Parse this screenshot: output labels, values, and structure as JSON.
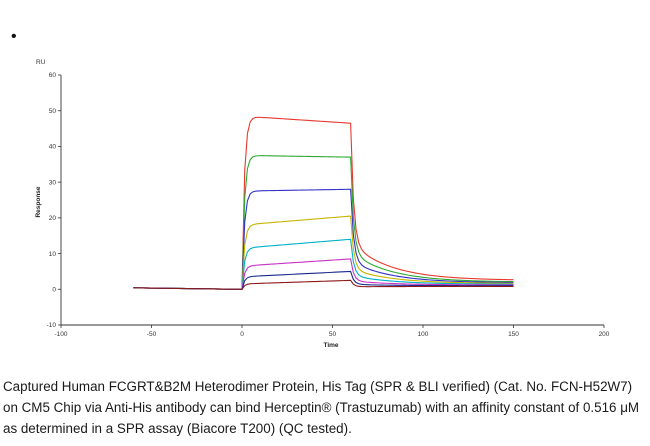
{
  "bullet": "•",
  "caption": "Captured Human FCGRT&B2M Heterodimer Protein, His Tag (SPR & BLI verified) (Cat. No. FCN-H52W7) on CM5 Chip via Anti-His antibody can bind Herceptin® (Trastuzumab) with an affinity constant of 0.516 μM as determined in a SPR assay (Biacore T200) (QC tested).",
  "chart_data": {
    "type": "line",
    "title": "",
    "xlabel": "Time",
    "ylabel": "Response",
    "yunit": "RU",
    "xlim": [
      -100,
      200
    ],
    "ylim": [
      -10,
      60
    ],
    "xticks": [
      -100,
      -50,
      0,
      50,
      100,
      150,
      200
    ],
    "yticks": [
      -10,
      0,
      10,
      20,
      30,
      40,
      50,
      60
    ],
    "grid": false,
    "legend": "none",
    "baseline": {
      "x": [
        -60,
        -1
      ],
      "y": [
        0,
        0
      ]
    },
    "phases": {
      "association_start": 0,
      "association_end": 60,
      "dissociation_end": 150
    },
    "series": [
      {
        "color": "#e8382e",
        "plateau_start": 48.5,
        "plateau_end": 46.5,
        "tail_end": 2.5
      },
      {
        "color": "#2ea82e",
        "plateau_start": 37.5,
        "plateau_end": 37.0,
        "tail_end": 2.0
      },
      {
        "color": "#3333c8",
        "plateau_start": 27.5,
        "plateau_end": 28.0,
        "tail_end": 1.8
      },
      {
        "color": "#c8b400",
        "plateau_start": 18.0,
        "plateau_end": 20.5,
        "tail_end": 1.6
      },
      {
        "color": "#00b0c8",
        "plateau_start": 11.5,
        "plateau_end": 14.0,
        "tail_end": 1.4
      },
      {
        "color": "#c832c8",
        "plateau_start": 6.5,
        "plateau_end": 8.5,
        "tail_end": 1.2
      },
      {
        "color": "#1a2a8c",
        "plateau_start": 3.5,
        "plateau_end": 5.0,
        "tail_end": 1.0
      },
      {
        "color": "#8c1a1a",
        "plateau_start": 1.5,
        "plateau_end": 2.5,
        "tail_end": 0.8
      }
    ]
  }
}
